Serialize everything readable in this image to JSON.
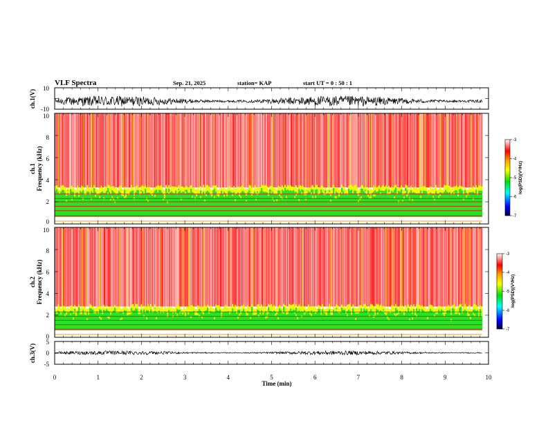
{
  "header": {
    "title": "VLF Spectra",
    "date": "Sep. 21, 2025",
    "station": "station= KAP",
    "start_ut": "start  UT =   0 : 50 : 1"
  },
  "chart_data": [
    {
      "id": "ch1_waveform",
      "type": "line",
      "ylabel": "ch.1(V)",
      "ylim": [
        -10,
        10
      ],
      "yticks": [
        "10",
        "-10"
      ],
      "xlim": [
        0,
        10
      ],
      "data_end_min": 9.85,
      "baseline": -2.5,
      "amplitude": 5,
      "color": "#000000"
    },
    {
      "id": "ch1_spectrogram",
      "type": "heatmap",
      "channel_label": "ch.1",
      "ylabel": "Frequency (kHz)",
      "ylim": [
        0,
        10
      ],
      "yticks": [
        "0",
        "2",
        "4",
        "6",
        "8",
        "10"
      ],
      "xlim": [
        0,
        10
      ],
      "data_end_min": 9.85,
      "band_top_khz": 3.3,
      "hum_lines_khz": [
        0.3,
        0.75,
        1.2,
        1.6,
        2.0,
        2.3,
        2.7
      ],
      "colorbar": {
        "label": "log(PSD)(V²/Hz)",
        "range": [
          -7,
          -3
        ],
        "ticks": [
          "-3",
          "-4",
          "-5",
          "-6",
          "-7"
        ]
      }
    },
    {
      "id": "ch2_spectrogram",
      "type": "heatmap",
      "channel_label": "ch.2",
      "ylabel": "Frequency (kHz)",
      "ylim": [
        0,
        10
      ],
      "yticks": [
        "0",
        "2",
        "4",
        "6",
        "8",
        "10"
      ],
      "xlim": [
        0,
        10
      ],
      "data_end_min": 9.85,
      "band_top_khz": 2.8,
      "hum_lines_khz": [
        0.3,
        0.75,
        1.15,
        1.55,
        1.9,
        2.3
      ],
      "colorbar": {
        "label": "log(PSD)(V²/Hz)",
        "range": [
          -7,
          -3
        ],
        "ticks": [
          "-3",
          "-4",
          "-5",
          "-6",
          "-7"
        ]
      }
    },
    {
      "id": "ch3_waveform",
      "type": "line",
      "ylabel": "ch.3(V)",
      "ylim": [
        -5,
        5
      ],
      "yticks": [
        "5",
        "0",
        "-5"
      ],
      "xlim": [
        0,
        10
      ],
      "data_end_min": 9.85,
      "baseline": 0,
      "amplitude": 0.9,
      "color": "#000000"
    }
  ],
  "xaxis": {
    "label": "Time (min)",
    "ticks": [
      "0",
      "1",
      "2",
      "3",
      "4",
      "5",
      "6",
      "7",
      "8",
      "9",
      "10"
    ],
    "range": [
      0,
      10
    ]
  },
  "colors": {
    "red": "#ff0000",
    "orange": "#ffa500",
    "yellow": "#ffff00",
    "green": "#00e000",
    "cyan": "#00ffff",
    "blue": "#0000ff",
    "navy": "#000040"
  }
}
